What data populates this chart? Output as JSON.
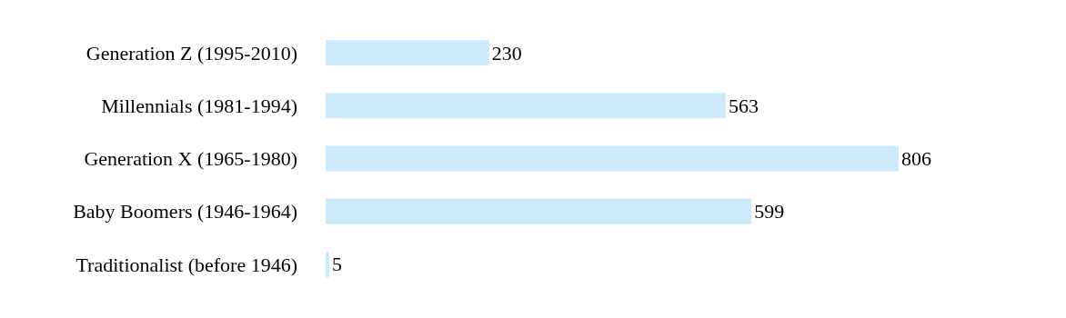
{
  "chart_data": {
    "type": "bar",
    "orientation": "horizontal",
    "categories": [
      "Generation Z (1995-2010)",
      "Millennials (1981-1994)",
      "Generation X (1965-1980)",
      "Baby Boomers (1946-1964)",
      "Traditionalist (before 1946)"
    ],
    "values": [
      230,
      563,
      806,
      599,
      5
    ],
    "color": "#cdeafa",
    "data_labels": true
  }
}
